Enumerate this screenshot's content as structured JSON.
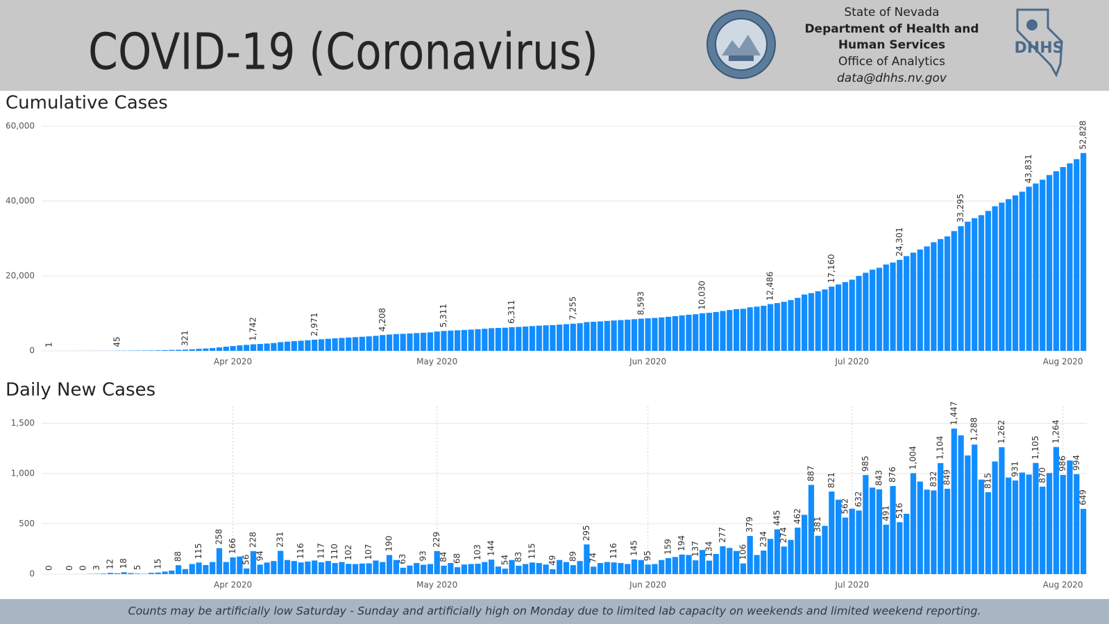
{
  "header": {
    "title": "COVID-19 (Coronavirus)",
    "agency": [
      "State of Nevada",
      "Department of Health and",
      "Human Services",
      "Office of Analytics",
      "data@dhhs.nv.gov"
    ],
    "logo_text": "DHHS"
  },
  "chart_data": [
    {
      "type": "bar",
      "title": "Cumulative Cases",
      "color": "#118dff",
      "grid": true,
      "xgrid": false,
      "ylim": [
        0,
        60000
      ],
      "yticks": [
        0,
        {
          "value": 20000,
          "label": "20,000"
        },
        {
          "value": 40000,
          "label": "40,000"
        },
        {
          "value": 60000,
          "label": "60,000"
        }
      ],
      "xticks": [
        {
          "value": 27,
          "label": "Apr 2020"
        },
        {
          "value": 57,
          "label": "May 2020"
        },
        {
          "value": 88,
          "label": "Jun 2020"
        },
        {
          "value": 118,
          "label": "Jul 2020"
        },
        {
          "value": 149,
          "label": "Aug 2020"
        }
      ],
      "values": [
        1,
        1,
        2,
        4,
        5,
        7,
        10,
        14,
        20,
        30,
        45,
        55,
        70,
        85,
        100,
        120,
        150,
        190,
        245,
        280,
        321,
        420,
        535,
        620,
        738,
        920,
        1110,
        1280,
        1460,
        1590,
        1742,
        1836,
        1950,
        2080,
        2311,
        2450,
        2580,
        2700,
        2830,
        2971,
        3088,
        3220,
        3330,
        3450,
        3552,
        3650,
        3760,
        3870,
        4000,
        4208,
        4340,
        4480,
        4545,
        4630,
        4740,
        4830,
        4930,
        5160,
        5311,
        5410,
        5480,
        5575,
        5675,
        5780,
        5900,
        6040,
        6120,
        6175,
        6311,
        6395,
        6495,
        6610,
        6720,
        6815,
        6865,
        7005,
        7125,
        7255,
        7385,
        7680,
        7755,
        7865,
        7985,
        8100,
        8210,
        8310,
        8455,
        8593,
        8690,
        8790,
        8930,
        9090,
        9260,
        9455,
        9645,
        9780,
        10030,
        10160,
        10360,
        10640,
        10900,
        11130,
        11235,
        11615,
        11805,
        12040,
        12486,
        12760,
        13100,
        13560,
        14150,
        15040,
        15420,
        15900,
        16400,
        17160,
        17720,
        18370,
        19000,
        19990,
        20850,
        21690,
        22180,
        23060,
        23580,
        24301,
        25300,
        26220,
        27060,
        27890,
        29000,
        29850,
        30560,
        31980,
        33295,
        34500,
        35420,
        36240,
        37360,
        38620,
        39580,
        40510,
        41520,
        42510,
        43831,
        44700,
        45700,
        46960,
        47950,
        49080,
        50070,
        51200,
        52828
      ],
      "value_labels": [
        "1",
        null,
        null,
        null,
        null,
        null,
        null,
        null,
        null,
        null,
        "45",
        null,
        null,
        null,
        null,
        null,
        null,
        null,
        null,
        null,
        "321",
        null,
        null,
        null,
        null,
        null,
        null,
        null,
        null,
        null,
        "1,742",
        null,
        null,
        null,
        null,
        null,
        null,
        null,
        null,
        "2,971",
        null,
        null,
        null,
        null,
        null,
        null,
        null,
        null,
        null,
        "4,208",
        null,
        null,
        null,
        null,
        null,
        null,
        null,
        null,
        "5,311",
        null,
        null,
        null,
        null,
        null,
        null,
        null,
        null,
        null,
        "6,311",
        null,
        null,
        null,
        null,
        null,
        null,
        null,
        null,
        "7,255",
        null,
        null,
        null,
        null,
        null,
        null,
        null,
        null,
        null,
        "8,593",
        null,
        null,
        null,
        null,
        null,
        null,
        null,
        null,
        "10,030",
        null,
        null,
        null,
        null,
        null,
        null,
        null,
        null,
        null,
        "12,486",
        null,
        null,
        null,
        null,
        null,
        null,
        null,
        null,
        "17,160",
        null,
        null,
        null,
        null,
        null,
        null,
        null,
        null,
        null,
        "24,301",
        null,
        null,
        null,
        null,
        null,
        null,
        null,
        null,
        "33,295",
        null,
        null,
        null,
        null,
        null,
        null,
        null,
        null,
        null,
        "43,831",
        null,
        null,
        null,
        null,
        null,
        null,
        null,
        "52,828"
      ]
    },
    {
      "type": "bar",
      "title": "Daily New Cases",
      "color": "#118dff",
      "grid": true,
      "xgrid": true,
      "ylim": [
        0,
        1600
      ],
      "yticks": [
        0,
        500,
        {
          "value": 1000,
          "label": "1,000"
        },
        {
          "value": 1500,
          "label": "1,500"
        }
      ],
      "xticks": [
        {
          "value": 27,
          "label": "Apr 2020"
        },
        {
          "value": 57,
          "label": "May 2020"
        },
        {
          "value": 88,
          "label": "Jun 2020"
        },
        {
          "value": 118,
          "label": "Jul 2020"
        },
        {
          "value": 149,
          "label": "Aug 2020"
        }
      ],
      "values": [
        0,
        0,
        0,
        0,
        0,
        0,
        2,
        3,
        5,
        12,
        8,
        18,
        10,
        5,
        3,
        12,
        15,
        25,
        35,
        88,
        50,
        100,
        115,
        90,
        120,
        258,
        120,
        166,
        175,
        56,
        228,
        94,
        115,
        130,
        231,
        140,
        130,
        116,
        125,
        135,
        117,
        130,
        110,
        120,
        102,
        100,
        105,
        107,
        135,
        120,
        190,
        140,
        63,
        85,
        110,
        93,
        100,
        229,
        84,
        110,
        68,
        95,
        100,
        103,
        120,
        144,
        75,
        54,
        140,
        83,
        100,
        115,
        110,
        95,
        49,
        140,
        120,
        89,
        130,
        295,
        74,
        110,
        120,
        116,
        110,
        100,
        145,
        140,
        95,
        100,
        140,
        159,
        170,
        194,
        190,
        137,
        240,
        134,
        200,
        277,
        260,
        230,
        106,
        379,
        190,
        234,
        350,
        445,
        274,
        340,
        462,
        590,
        887,
        381,
        480,
        821,
        740,
        562,
        650,
        632,
        985,
        860,
        843,
        491,
        876,
        516,
        600,
        1004,
        920,
        840,
        832,
        1104,
        849,
        1447,
        1380,
        1180,
        1288,
        940,
        815,
        1120,
        1262,
        960,
        931,
        1010,
        990,
        1105,
        870,
        1005,
        1264,
        986,
        1130,
        994,
        649
      ],
      "value_labels": [
        "0",
        null,
        null,
        "0",
        null,
        "0",
        null,
        "3",
        null,
        "12",
        null,
        "18",
        null,
        "5",
        null,
        null,
        "15",
        null,
        null,
        "88",
        null,
        null,
        "115",
        null,
        null,
        "258",
        null,
        "166",
        null,
        "56",
        "228",
        "94",
        null,
        null,
        "231",
        null,
        null,
        "116",
        null,
        null,
        "117",
        null,
        "110",
        null,
        "102",
        null,
        null,
        "107",
        null,
        null,
        "190",
        null,
        "63",
        null,
        null,
        "93",
        null,
        "229",
        "84",
        null,
        "68",
        null,
        null,
        "103",
        null,
        "144",
        null,
        "54",
        null,
        "83",
        null,
        "115",
        null,
        null,
        "49",
        null,
        null,
        "89",
        null,
        "295",
        "74",
        null,
        null,
        "116",
        null,
        null,
        "145",
        null,
        "95",
        null,
        null,
        "159",
        null,
        "194",
        null,
        "137",
        null,
        "134",
        null,
        "277",
        null,
        null,
        "106",
        "379",
        null,
        "234",
        null,
        "445",
        "274",
        null,
        "462",
        null,
        "887",
        "381",
        null,
        "821",
        null,
        "562",
        null,
        "632",
        "985",
        null,
        "843",
        "491",
        "876",
        "516",
        null,
        "1,004",
        null,
        null,
        "832",
        "1,104",
        "849",
        "1,447",
        null,
        null,
        "1,288",
        null,
        "815",
        null,
        "1,262",
        null,
        "931",
        null,
        null,
        "1,105",
        "870",
        null,
        "1,264",
        "986",
        null,
        "994",
        "649"
      ]
    }
  ],
  "footer": {
    "note": "Counts may be artificially low Saturday - Sunday and artificially high on Monday due to limited lab capacity on weekends and limited weekend reporting."
  }
}
